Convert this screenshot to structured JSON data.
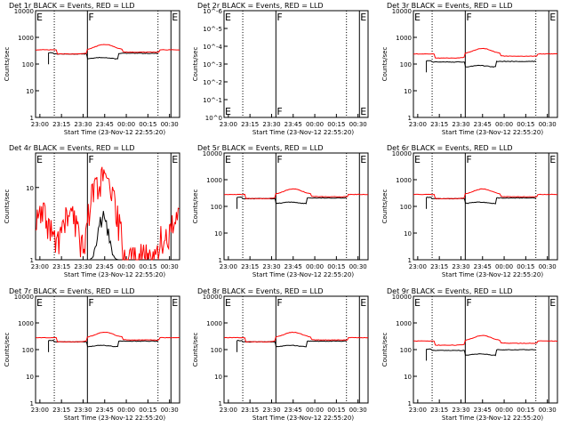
{
  "chart_data": [
    {
      "type": "line",
      "title": "Det 1r BLACK = Events, RED = LLD",
      "xlabel": "Start Time (23-Nov-12 22:55:20)",
      "ylabel": "Counts/sec",
      "yscale": "log",
      "ylim": [
        1,
        10000
      ],
      "yticks": [
        "10000",
        "1000",
        "100",
        "10",
        "1"
      ],
      "xticks": [
        "23:00",
        "23:15",
        "23:30",
        "23:45",
        "00:00",
        "00:15",
        "00:30"
      ],
      "markers": [
        {
          "label": "E",
          "t": 0
        },
        {
          "label": "F",
          "t": 36
        },
        {
          "label": "E",
          "t": 94
        }
      ],
      "series": [
        {
          "color": "#000000",
          "profile": "events",
          "level": 280
        },
        {
          "color": "#ff0000",
          "profile": "lld",
          "level": 340
        }
      ]
    },
    {
      "type": "line",
      "title": "Det 2r BLACK = Events, RED = LLD",
      "xlabel": "Start Time (23-Nov-12 22:55:20)",
      "ylabel": "Counts/sec",
      "yscale": "log",
      "ylim": [
        1,
        1e-06
      ],
      "yticks": [
        "10^-6",
        "10^-5",
        "10^-4",
        "10^-3",
        "10^-2",
        "10^-1",
        "10^0"
      ],
      "xticks": [
        "23:00",
        "23:15",
        "23:30",
        "23:45",
        "00:00",
        "00:15",
        "00:30"
      ],
      "markers": [
        {
          "label": "E",
          "t": 0
        },
        {
          "label": "F",
          "t": 36
        },
        {
          "label": "E",
          "t": 94
        }
      ],
      "series": []
    },
    {
      "type": "line",
      "title": "Det 3r BLACK = Events, RED = LLD",
      "xlabel": "Start Time (23-Nov-12 22:55:20)",
      "ylabel": "Counts/sec",
      "yscale": "log",
      "ylim": [
        1,
        10000
      ],
      "yticks": [
        "10000",
        "1000",
        "100",
        "10",
        "1"
      ],
      "xticks": [
        "23:00",
        "23:15",
        "23:30",
        "23:45",
        "00:00",
        "00:15",
        "00:30"
      ],
      "markers": [
        {
          "label": "E",
          "t": 0
        },
        {
          "label": "F",
          "t": 36
        },
        {
          "label": "E",
          "t": 94
        }
      ],
      "series": [
        {
          "color": "#000000",
          "profile": "events",
          "level": 140
        },
        {
          "color": "#ff0000",
          "profile": "lld",
          "level": 240
        }
      ]
    },
    {
      "type": "line",
      "title": "Det 4r BLACK = Events, RED = LLD",
      "xlabel": "Start Time (23-Nov-12 22:55:20)",
      "ylabel": "Counts/sec",
      "yscale": "log",
      "ylim": [
        1,
        30
      ],
      "yticks": [
        "10",
        "1"
      ],
      "xticks": [
        "23:00",
        "23:15",
        "23:30",
        "23:45",
        "00:00",
        "00:15",
        "00:30"
      ],
      "markers": [
        {
          "label": "E",
          "t": 0
        },
        {
          "label": "F",
          "t": 36
        },
        {
          "label": "E",
          "t": 94
        }
      ],
      "series": [
        {
          "color": "#000000",
          "profile": "sparse",
          "level": 1
        },
        {
          "color": "#ff0000",
          "profile": "noisy",
          "level": 3
        }
      ]
    },
    {
      "type": "line",
      "title": "Det 5r BLACK = Events, RED = LLD",
      "xlabel": "Start Time (23-Nov-12 22:55:20)",
      "ylabel": "Counts/sec",
      "yscale": "log",
      "ylim": [
        1,
        10000
      ],
      "yticks": [
        "10000",
        "1000",
        "100",
        "10",
        "1"
      ],
      "xticks": [
        "23:00",
        "23:15",
        "23:30",
        "23:45",
        "00:00",
        "00:15",
        "00:30"
      ],
      "markers": [
        {
          "label": "E",
          "t": 0
        },
        {
          "label": "F",
          "t": 36
        },
        {
          "label": "E",
          "t": 94
        }
      ],
      "series": [
        {
          "color": "#000000",
          "profile": "events",
          "level": 230
        },
        {
          "color": "#ff0000",
          "profile": "lld",
          "level": 280
        }
      ]
    },
    {
      "type": "line",
      "title": "Det 6r BLACK = Events, RED = LLD",
      "xlabel": "Start Time (23-Nov-12 22:55:20)",
      "ylabel": "Counts/sec",
      "yscale": "log",
      "ylim": [
        1,
        10000
      ],
      "yticks": [
        "10000",
        "1000",
        "100",
        "10",
        "1"
      ],
      "xticks": [
        "23:00",
        "23:15",
        "23:30",
        "23:45",
        "00:00",
        "00:15",
        "00:30"
      ],
      "markers": [
        {
          "label": "E",
          "t": 0
        },
        {
          "label": "F",
          "t": 36
        },
        {
          "label": "E",
          "t": 94
        }
      ],
      "series": [
        {
          "color": "#000000",
          "profile": "events",
          "level": 230
        },
        {
          "color": "#ff0000",
          "profile": "lld",
          "level": 280
        }
      ]
    },
    {
      "type": "line",
      "title": "Det 7r BLACK = Events, RED = LLD",
      "xlabel": "Start Time (23-Nov-12 22:55:20)",
      "ylabel": "Counts/sec",
      "yscale": "log",
      "ylim": [
        1,
        10000
      ],
      "yticks": [
        "10000",
        "1000",
        "100",
        "10",
        "1"
      ],
      "xticks": [
        "23:00",
        "23:15",
        "23:30",
        "23:45",
        "00:00",
        "00:15",
        "00:30"
      ],
      "markers": [
        {
          "label": "E",
          "t": 0
        },
        {
          "label": "F",
          "t": 36
        },
        {
          "label": "E",
          "t": 94
        }
      ],
      "series": [
        {
          "color": "#000000",
          "profile": "events",
          "level": 230
        },
        {
          "color": "#ff0000",
          "profile": "lld",
          "level": 280
        }
      ]
    },
    {
      "type": "line",
      "title": "Det 8r BLACK = Events, RED = LLD",
      "xlabel": "Start Time (23-Nov-12 22:55:20)",
      "ylabel": "Counts/sec",
      "yscale": "log",
      "ylim": [
        1,
        10000
      ],
      "yticks": [
        "10000",
        "1000",
        "100",
        "10",
        "1"
      ],
      "xticks": [
        "23:00",
        "23:15",
        "23:30",
        "23:45",
        "00:00",
        "00:15",
        "00:30"
      ],
      "markers": [
        {
          "label": "E",
          "t": 0
        },
        {
          "label": "F",
          "t": 36
        },
        {
          "label": "E",
          "t": 94
        }
      ],
      "series": [
        {
          "color": "#000000",
          "profile": "events",
          "level": 230
        },
        {
          "color": "#ff0000",
          "profile": "lld",
          "level": 280
        }
      ]
    },
    {
      "type": "line",
      "title": "Det 9r BLACK = Events, RED = LLD",
      "xlabel": "Start Time (23-Nov-12 22:55:20)",
      "ylabel": "Counts/sec",
      "yscale": "log",
      "ylim": [
        1,
        10000
      ],
      "yticks": [
        "10000",
        "1000",
        "100",
        "10",
        "1"
      ],
      "xticks": [
        "23:00",
        "23:15",
        "23:30",
        "23:45",
        "00:00",
        "00:15",
        "00:30"
      ],
      "markers": [
        {
          "label": "E",
          "t": 0
        },
        {
          "label": "F",
          "t": 36
        },
        {
          "label": "E",
          "t": 94
        }
      ],
      "series": [
        {
          "color": "#000000",
          "profile": "events",
          "level": 110
        },
        {
          "color": "#ff0000",
          "profile": "lld",
          "level": 210
        }
      ]
    }
  ]
}
